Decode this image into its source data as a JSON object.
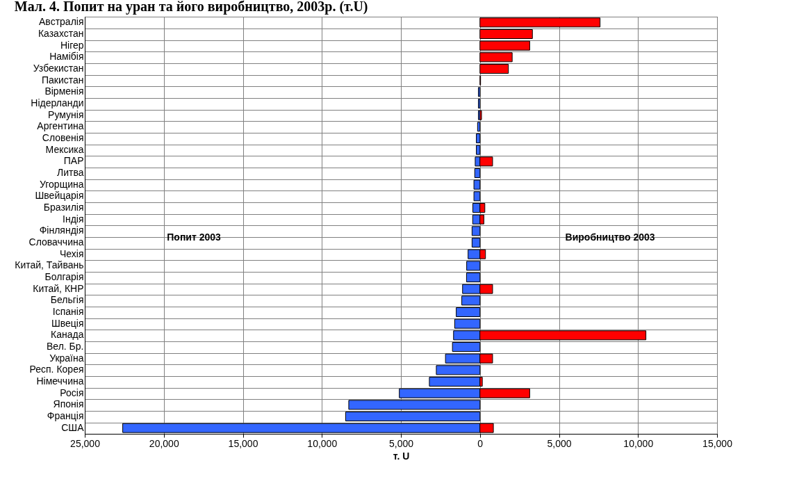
{
  "chart_data": {
    "type": "bar",
    "orientation": "horizontal",
    "title": "Мал. 4. Попит на уран та його виробництво, 2003р. (т.U)",
    "xlabel": "т. U",
    "categories": [
      "Австралія",
      "Казахстан",
      "Нігер",
      "Намібія",
      "Узбекистан",
      "Пакистан",
      "Вірменія",
      "Нідерланди",
      "Румунія",
      "Аргентина",
      "Словенія",
      "Мексика",
      "ПАР",
      "Литва",
      "Угорщина",
      "Швейцарія",
      "Бразилія",
      "Індія",
      "Фінляндія",
      "Словаччина",
      "Чехія",
      "Китай, Тайвань",
      "Болгарія",
      "Китай, КНР",
      "Бельгія",
      "Іспанія",
      "Швеція",
      "Канада",
      "Вел. Бр.",
      "Україна",
      "Респ. Корея",
      "Німеччина",
      "Росія",
      "Японія",
      "Франція",
      "США"
    ],
    "series": [
      {
        "name": "Попит 2003",
        "color": "#3366ff",
        "values": [
          null,
          null,
          null,
          null,
          null,
          null,
          -100,
          -100,
          -100,
          -150,
          -230,
          -230,
          -300,
          -330,
          -380,
          -380,
          -450,
          -460,
          -500,
          -500,
          -750,
          -840,
          -850,
          -1100,
          -1150,
          -1500,
          -1600,
          -1670,
          -1740,
          -2180,
          -2760,
          -3200,
          -5100,
          -8300,
          -8500,
          -22600
        ]
      },
      {
        "name": "Виробництво 2003",
        "color": "#ff0000",
        "values": [
          7600,
          3320,
          3150,
          2040,
          1800,
          40,
          null,
          null,
          100,
          null,
          null,
          null,
          800,
          null,
          null,
          null,
          310,
          250,
          null,
          null,
          350,
          null,
          null,
          800,
          null,
          null,
          null,
          10500,
          null,
          800,
          null,
          150,
          3150,
          null,
          null,
          850
        ]
      }
    ],
    "xlim": [
      -25000,
      15000
    ],
    "xticks": [
      {
        "value": -25000,
        "label": "25,000"
      },
      {
        "value": -20000,
        "label": "20,000"
      },
      {
        "value": -15000,
        "label": "15,000"
      },
      {
        "value": -10000,
        "label": "10,000"
      },
      {
        "value": -5000,
        "label": "5,000"
      },
      {
        "value": 0,
        "label": "0"
      },
      {
        "value": 5000,
        "label": "5,000"
      },
      {
        "value": 10000,
        "label": "10,000"
      },
      {
        "value": 15000,
        "label": "15,000"
      }
    ],
    "grid": true
  }
}
